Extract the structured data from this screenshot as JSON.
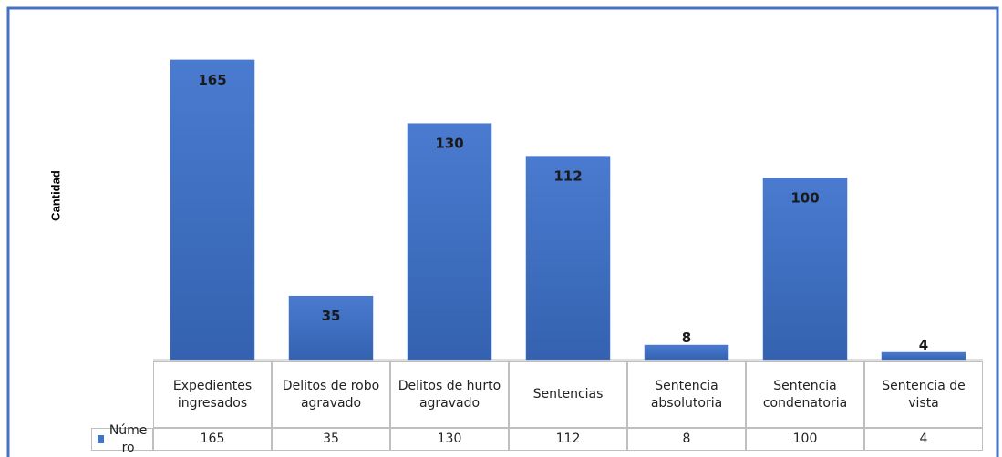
{
  "chart_data": {
    "type": "bar",
    "y_label": "Cantidad",
    "categories": [
      "Expedientes ingresados",
      "Delitos de robo agravado",
      "Delitos de hurto agravado",
      "Sentencias",
      "Sentencia absolutoria",
      "Sentencia condenatoria",
      "Sentencia de vista"
    ],
    "series": [
      {
        "name": "Número",
        "color": "#4472c4",
        "values": [
          165,
          35,
          130,
          112,
          8,
          100,
          4
        ]
      }
    ],
    "ylim": [
      0,
      180
    ],
    "grid": false
  }
}
